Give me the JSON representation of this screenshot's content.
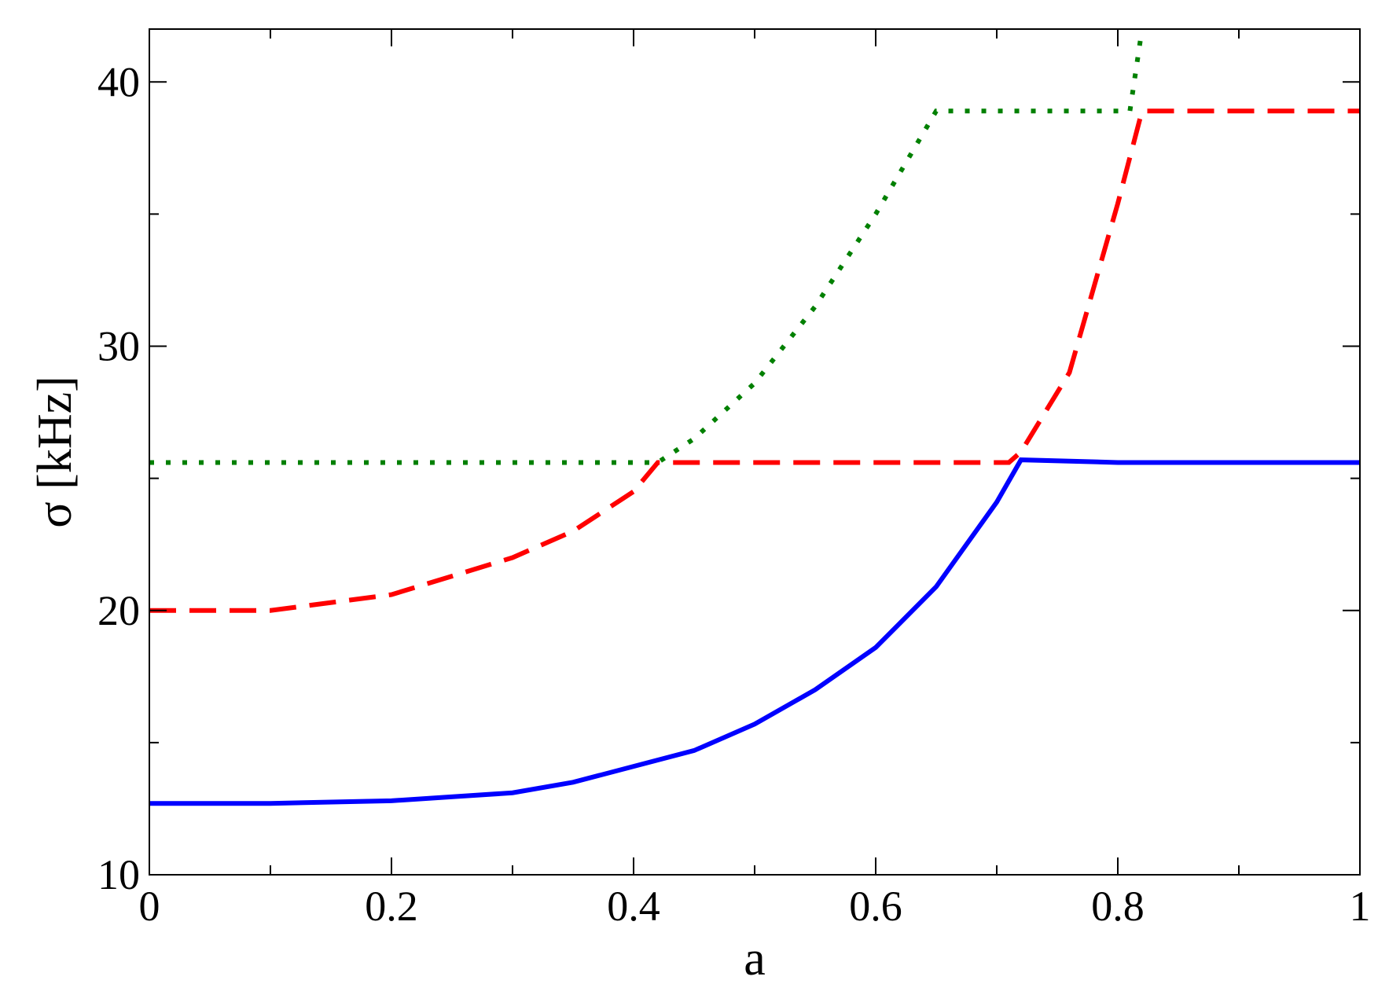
{
  "chart_data": {
    "type": "line",
    "xlabel": "a",
    "ylabel": "σ [kHz]",
    "xlim": [
      0,
      1
    ],
    "ylim": [
      10,
      42
    ],
    "xticks": [
      0,
      0.2,
      0.4,
      0.6,
      0.8,
      1
    ],
    "yticks": [
      10,
      20,
      30,
      40
    ],
    "xminor": [
      0.1,
      0.3,
      0.5,
      0.7,
      0.9
    ],
    "yminor": [
      15,
      25,
      35
    ],
    "series": [
      {
        "color": "#0000ff",
        "style": "solid",
        "x": [
          0,
          0.1,
          0.2,
          0.3,
          0.35,
          0.4,
          0.45,
          0.5,
          0.55,
          0.6,
          0.65,
          0.7,
          0.72,
          0.8,
          1
        ],
        "values": [
          12.7,
          12.7,
          12.8,
          13.1,
          13.5,
          14.1,
          14.7,
          15.7,
          17.0,
          18.6,
          20.9,
          24.1,
          25.7,
          25.6,
          25.6
        ]
      },
      {
        "color": "#ff0000",
        "style": "dashed",
        "x": [
          0,
          0.1,
          0.2,
          0.3,
          0.35,
          0.4,
          0.42,
          0.71,
          0.72,
          0.76,
          0.8,
          0.82,
          1
        ],
        "values": [
          20.0,
          20.0,
          20.6,
          22.0,
          23.0,
          24.5,
          25.6,
          25.6,
          26.0,
          29.0,
          35.4,
          38.9,
          38.9
        ]
      },
      {
        "color": "#008000",
        "style": "dotted",
        "x": [
          0,
          0.42,
          0.45,
          0.5,
          0.55,
          0.6,
          0.65,
          0.81,
          0.82
        ],
        "values": [
          25.6,
          25.6,
          26.5,
          28.6,
          31.5,
          35.0,
          38.9,
          38.9,
          42
        ]
      }
    ]
  }
}
